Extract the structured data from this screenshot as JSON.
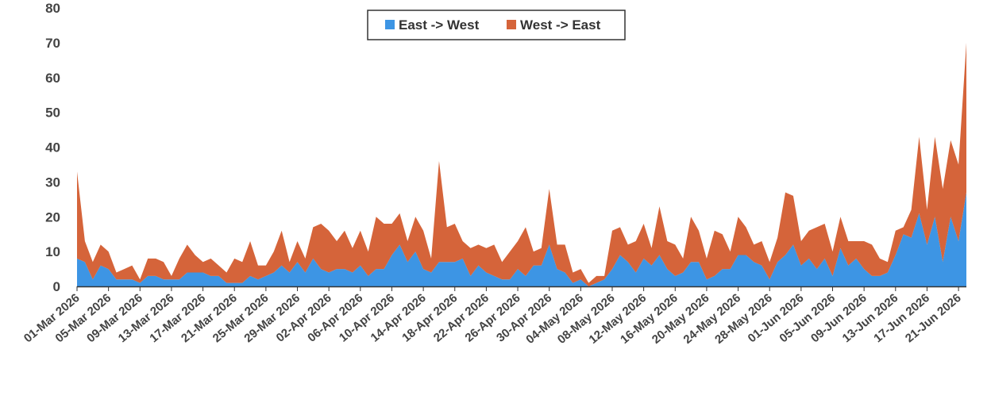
{
  "chart_data": {
    "type": "area",
    "stacked": true,
    "title": "",
    "xlabel": "",
    "ylabel": "",
    "ylim": [
      0,
      80
    ],
    "yticks": [
      0,
      10,
      20,
      30,
      40,
      50,
      60,
      70,
      80
    ],
    "grid": false,
    "legend_position": "top-center",
    "x_start": "2026-03-01",
    "x_tick_every_days": 4,
    "x_tick_labels": [
      "01-Mar 2026",
      "05-Mar 2026",
      "09-Mar 2026",
      "13-Mar 2026",
      "17-Mar 2026",
      "21-Mar 2026",
      "25-Mar 2026",
      "29-Mar 2026",
      "02-Apr 2026",
      "06-Apr 2026",
      "10-Apr 2026",
      "14-Apr 2026",
      "18-Apr 2026",
      "22-Apr 2026",
      "26-Apr 2026",
      "30-Apr 2026",
      "04-May 2026",
      "08-May 2026",
      "12-May 2026",
      "16-May 2026",
      "20-May 2026",
      "24-May 2026",
      "28-May 2026",
      "01-Jun 2026",
      "05-Jun 2026",
      "09-Jun 2026",
      "13-Jun 2026",
      "17-Jun 2026",
      "21-Jun 2026"
    ],
    "series": [
      {
        "name": "East -> West",
        "color": "#3d95e4",
        "values": [
          8,
          7,
          2,
          6,
          5,
          2,
          2,
          2,
          1,
          3,
          3,
          2,
          2,
          2,
          4,
          4,
          4,
          3,
          3,
          1,
          1,
          1,
          3,
          2,
          3,
          4,
          6,
          4,
          7,
          4,
          8,
          5,
          4,
          5,
          5,
          4,
          6,
          3,
          5,
          5,
          9,
          12,
          7,
          10,
          5,
          4,
          7,
          7,
          7,
          8,
          3,
          6,
          4,
          3,
          2,
          2,
          5,
          3,
          6,
          6,
          12,
          5,
          4,
          1,
          2,
          0,
          1,
          2,
          5,
          9,
          7,
          4,
          8,
          6,
          9,
          5,
          3,
          4,
          7,
          7,
          2,
          3,
          5,
          5,
          9,
          9,
          7,
          6,
          2,
          7,
          9,
          12,
          6,
          8,
          5,
          8,
          3,
          11,
          6,
          8,
          5,
          3,
          3,
          4,
          9,
          15,
          14,
          21,
          12,
          20,
          7,
          20,
          13,
          27
        ]
      },
      {
        "name": "West -> East",
        "color": "#d5643a",
        "values": [
          25,
          6,
          5,
          6,
          5,
          2,
          3,
          4,
          1,
          5,
          5,
          5,
          1,
          6,
          8,
          5,
          3,
          5,
          3,
          3,
          7,
          6,
          10,
          4,
          3,
          6,
          10,
          3,
          6,
          4,
          9,
          13,
          12,
          8,
          11,
          7,
          10,
          7,
          15,
          13,
          9,
          9,
          6,
          10,
          11,
          4,
          29,
          10,
          11,
          5,
          8,
          6,
          7,
          9,
          5,
          8,
          8,
          14,
          4,
          5,
          16,
          7,
          8,
          3,
          3,
          1,
          2,
          1,
          11,
          8,
          5,
          9,
          10,
          5,
          14,
          8,
          9,
          4,
          13,
          9,
          6,
          13,
          10,
          5,
          11,
          8,
          5,
          7,
          5,
          7,
          18,
          14,
          7,
          8,
          12,
          10,
          7,
          9,
          7,
          5,
          8,
          9,
          5,
          3,
          7,
          2,
          8,
          22,
          10,
          23,
          21,
          22,
          22,
          43
        ]
      }
    ]
  }
}
